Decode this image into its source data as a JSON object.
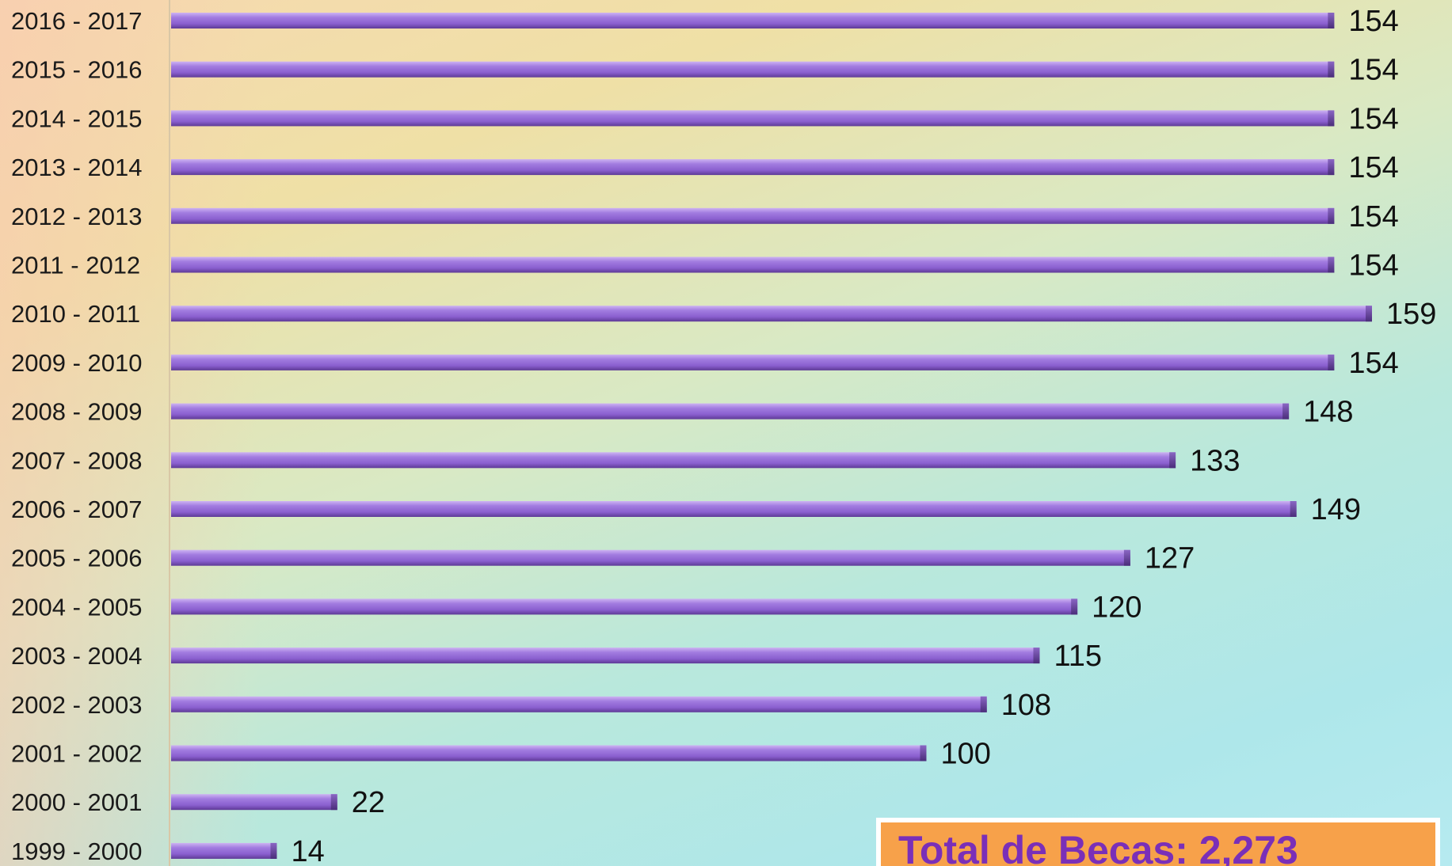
{
  "chart_data": {
    "type": "bar",
    "orientation": "horizontal",
    "categories": [
      "2016 - 2017",
      "2015 - 2016",
      "2014 - 2015",
      "2013 - 2014",
      "2012 - 2013",
      "2011 - 2012",
      "2010 - 2011",
      "2009 - 2010",
      "2008 - 2009",
      "2007 - 2008",
      "2006 - 2007",
      "2005 - 2006",
      "2004 - 2005",
      "2003 - 2004",
      "2002 - 2003",
      "2001 - 2002",
      "2000 - 2001",
      "1999 - 2000"
    ],
    "values": [
      154,
      154,
      154,
      154,
      154,
      154,
      159,
      154,
      148,
      133,
      149,
      127,
      120,
      115,
      108,
      100,
      22,
      14
    ],
    "value_labels": [
      "154",
      "154",
      "154",
      "154",
      "154",
      "154",
      "159",
      "154",
      "148",
      "133",
      "149",
      "127",
      "120",
      "115",
      "108",
      "100",
      "22",
      "14"
    ],
    "xlim": [
      0,
      159
    ],
    "bar_color": "#9b6fd6",
    "grid": false,
    "legend": "none"
  },
  "total_box": {
    "text": "Total de Becas: 2,273",
    "background": "#f7a14a",
    "text_color": "#7a2fb8"
  }
}
